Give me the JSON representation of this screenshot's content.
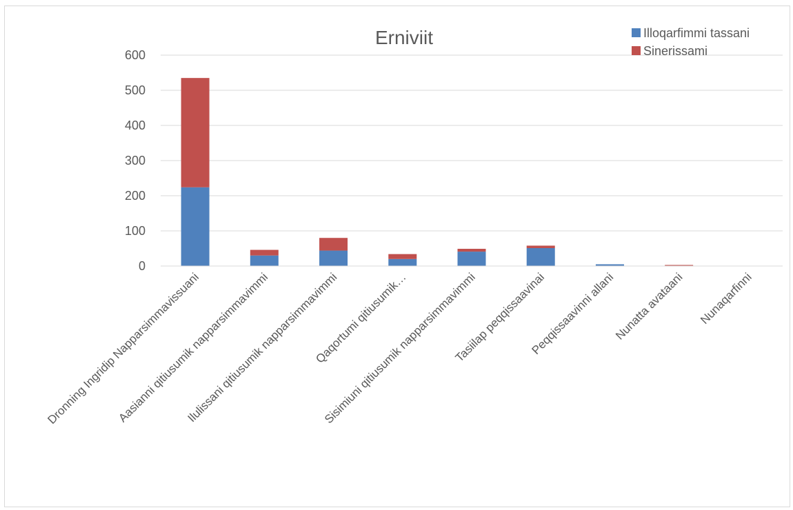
{
  "chart_data": {
    "type": "bar",
    "stacked": true,
    "title": "Erniviit",
    "categories": [
      "Dronning Ingridip Napparsimmavissuani",
      "Aasianni qitiusumik napparsimmavimmi",
      "Ilulissani qitiusumik napparsimmavimmi",
      "Qaqortumi qitiusumik…",
      "Sisimiuni qitiusumik napparsimmavimmi",
      "Tasiilap peqqissaavinai",
      "Peqqissaavinni allani",
      "Nunatta avataani",
      "Nunaqarfinni"
    ],
    "series": [
      {
        "name": "Illoqarfimmi tassani",
        "color": "#4f81bd",
        "values": [
          224,
          30,
          44,
          20,
          41,
          51,
          5,
          1,
          0
        ]
      },
      {
        "name": "Sinerissami",
        "color": "#c0504d",
        "values": [
          311,
          16,
          36,
          14,
          8,
          7,
          0,
          2,
          0
        ]
      }
    ],
    "ylim": [
      0,
      600
    ],
    "yticks": [
      0,
      100,
      200,
      300,
      400,
      500,
      600
    ],
    "grid": true,
    "legend_position": "top-right"
  }
}
